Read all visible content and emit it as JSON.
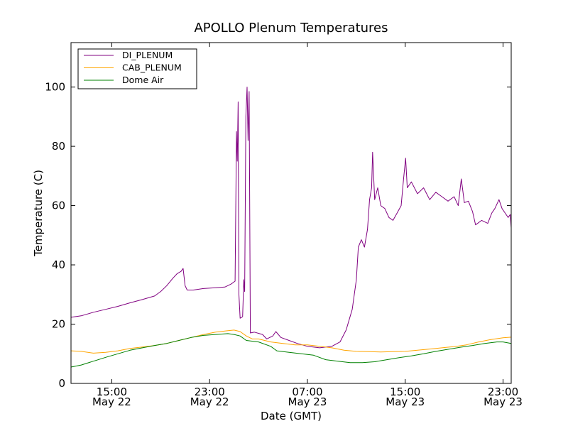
{
  "chart_data": {
    "type": "line",
    "title": "APOLLO Plenum Temperatures",
    "xlabel": "Date (GMT)",
    "ylabel": "Temperature (C)",
    "x_range": [
      "2013-05-22T11:40",
      "2013-05-23T23:40"
    ],
    "ylim": [
      0,
      115
    ],
    "grid": false,
    "legend_position": "top-left",
    "y_ticks": [
      0,
      20,
      40,
      60,
      80,
      100
    ],
    "x_ticks": [
      {
        "x": "2013-05-22T15:00",
        "label_time": "15:00",
        "label_date": "May 22"
      },
      {
        "x": "2013-05-22T23:00",
        "label_time": "23:00",
        "label_date": "May 22"
      },
      {
        "x": "2013-05-23T07:00",
        "label_time": "07:00",
        "label_date": "May 23"
      },
      {
        "x": "2013-05-23T15:00",
        "label_time": "15:00",
        "label_date": "May 23"
      },
      {
        "x": "2013-05-23T23:00",
        "label_time": "23:00",
        "label_date": "May 23"
      }
    ],
    "series": [
      {
        "name": "DI_PLENUM",
        "color": "#800080",
        "points": [
          [
            "2013-05-22T11:40",
            22.3
          ],
          [
            "2013-05-22T12:30",
            22.8
          ],
          [
            "2013-05-22T13:30",
            24.0
          ],
          [
            "2013-05-22T14:30",
            25.0
          ],
          [
            "2013-05-22T15:30",
            26.0
          ],
          [
            "2013-05-22T16:30",
            27.2
          ],
          [
            "2013-05-22T17:30",
            28.3
          ],
          [
            "2013-05-22T18:30",
            29.5
          ],
          [
            "2013-05-22T19:00",
            31.0
          ],
          [
            "2013-05-22T19:30",
            33.0
          ],
          [
            "2013-05-22T20:00",
            35.5
          ],
          [
            "2013-05-22T20:20",
            37.0
          ],
          [
            "2013-05-22T20:40",
            37.8
          ],
          [
            "2013-05-22T20:50",
            38.8
          ],
          [
            "2013-05-22T21:00",
            33.0
          ],
          [
            "2013-05-22T21:10",
            31.5
          ],
          [
            "2013-05-22T21:40",
            31.5
          ],
          [
            "2013-05-22T22:30",
            32.0
          ],
          [
            "2013-05-22T23:30",
            32.3
          ],
          [
            "2013-05-23T00:15",
            32.5
          ],
          [
            "2013-05-23T00:45",
            33.5
          ],
          [
            "2013-05-23T01:05",
            34.5
          ],
          [
            "2013-05-23T01:12",
            85.0
          ],
          [
            "2013-05-23T01:16",
            75.0
          ],
          [
            "2013-05-23T01:20",
            95.0
          ],
          [
            "2013-05-23T01:24",
            30.0
          ],
          [
            "2013-05-23T01:30",
            22.0
          ],
          [
            "2013-05-23T01:42",
            22.5
          ],
          [
            "2013-05-23T01:48",
            35.0
          ],
          [
            "2013-05-23T01:52",
            31.0
          ],
          [
            "2013-05-23T01:58",
            90.0
          ],
          [
            "2013-05-23T02:04",
            100.0
          ],
          [
            "2013-05-23T02:09",
            82.0
          ],
          [
            "2013-05-23T02:14",
            98.5
          ],
          [
            "2013-05-23T02:20",
            17.0
          ],
          [
            "2013-05-23T02:40",
            17.3
          ],
          [
            "2013-05-23T03:20",
            16.5
          ],
          [
            "2013-05-23T03:40",
            15.0
          ],
          [
            "2013-05-23T04:10",
            16.0
          ],
          [
            "2013-05-23T04:25",
            17.5
          ],
          [
            "2013-05-23T04:50",
            15.5
          ],
          [
            "2013-05-23T05:30",
            14.5
          ],
          [
            "2013-05-23T06:10",
            13.5
          ],
          [
            "2013-05-23T07:00",
            12.5
          ],
          [
            "2013-05-23T08:00",
            12.0
          ],
          [
            "2013-05-23T09:00",
            12.5
          ],
          [
            "2013-05-23T09:40",
            14.0
          ],
          [
            "2013-05-23T10:10",
            18.0
          ],
          [
            "2013-05-23T10:40",
            25.0
          ],
          [
            "2013-05-23T11:00",
            35.0
          ],
          [
            "2013-05-23T11:10",
            46.0
          ],
          [
            "2013-05-23T11:25",
            48.5
          ],
          [
            "2013-05-23T11:40",
            46.0
          ],
          [
            "2013-05-23T11:55",
            52.0
          ],
          [
            "2013-05-23T12:05",
            62.0
          ],
          [
            "2013-05-23T12:15",
            66.0
          ],
          [
            "2013-05-23T12:20",
            78.0
          ],
          [
            "2013-05-23T12:30",
            62.0
          ],
          [
            "2013-05-23T12:45",
            66.0
          ],
          [
            "2013-05-23T13:00",
            60.0
          ],
          [
            "2013-05-23T13:20",
            59.0
          ],
          [
            "2013-05-23T13:40",
            56.0
          ],
          [
            "2013-05-23T14:00",
            55.0
          ],
          [
            "2013-05-23T14:20",
            57.5
          ],
          [
            "2013-05-23T14:40",
            60.0
          ],
          [
            "2013-05-23T14:52",
            69.0
          ],
          [
            "2013-05-23T15:02",
            76.0
          ],
          [
            "2013-05-23T15:10",
            66.0
          ],
          [
            "2013-05-23T15:30",
            68.0
          ],
          [
            "2013-05-23T16:00",
            64.0
          ],
          [
            "2013-05-23T16:30",
            66.0
          ],
          [
            "2013-05-23T17:00",
            62.0
          ],
          [
            "2013-05-23T17:30",
            64.5
          ],
          [
            "2013-05-23T18:00",
            63.0
          ],
          [
            "2013-05-23T18:30",
            61.5
          ],
          [
            "2013-05-23T19:00",
            63.0
          ],
          [
            "2013-05-23T19:20",
            60.0
          ],
          [
            "2013-05-23T19:35",
            69.0
          ],
          [
            "2013-05-23T19:50",
            61.0
          ],
          [
            "2013-05-23T20:10",
            61.5
          ],
          [
            "2013-05-23T20:30",
            58.0
          ],
          [
            "2013-05-23T20:45",
            53.5
          ],
          [
            "2013-05-23T21:15",
            55.0
          ],
          [
            "2013-05-23T21:45",
            54.0
          ],
          [
            "2013-05-23T22:05",
            57.5
          ],
          [
            "2013-05-23T22:20",
            59.0
          ],
          [
            "2013-05-23T22:40",
            62.0
          ],
          [
            "2013-05-23T22:55",
            59.0
          ],
          [
            "2013-05-23T23:10",
            57.5
          ],
          [
            "2013-05-23T23:25",
            56.0
          ],
          [
            "2013-05-23T23:35",
            57.0
          ],
          [
            "2013-05-23T23:40",
            52.5
          ]
        ]
      },
      {
        "name": "CAB_PLENUM",
        "color": "#ffa500",
        "points": [
          [
            "2013-05-22T11:40",
            11.0
          ],
          [
            "2013-05-22T12:30",
            10.8
          ],
          [
            "2013-05-22T13:30",
            10.2
          ],
          [
            "2013-05-22T14:30",
            10.5
          ],
          [
            "2013-05-22T15:30",
            11.0
          ],
          [
            "2013-05-22T16:30",
            11.8
          ],
          [
            "2013-05-22T17:30",
            12.3
          ],
          [
            "2013-05-22T18:30",
            12.8
          ],
          [
            "2013-05-22T19:30",
            13.5
          ],
          [
            "2013-05-22T20:30",
            14.5
          ],
          [
            "2013-05-22T21:30",
            15.5
          ],
          [
            "2013-05-22T22:30",
            16.5
          ],
          [
            "2013-05-22T23:30",
            17.3
          ],
          [
            "2013-05-23T00:30",
            17.8
          ],
          [
            "2013-05-23T01:00",
            18.0
          ],
          [
            "2013-05-23T01:30",
            17.5
          ],
          [
            "2013-05-23T02:00",
            16.0
          ],
          [
            "2013-05-23T02:30",
            15.0
          ],
          [
            "2013-05-23T03:00",
            15.0
          ],
          [
            "2013-05-23T04:00",
            14.0
          ],
          [
            "2013-05-23T05:00",
            13.5
          ],
          [
            "2013-05-23T06:00",
            13.0
          ],
          [
            "2013-05-23T07:00",
            13.0
          ],
          [
            "2013-05-23T08:00",
            12.5
          ],
          [
            "2013-05-23T09:00",
            12.0
          ],
          [
            "2013-05-23T10:00",
            11.2
          ],
          [
            "2013-05-23T11:00",
            10.8
          ],
          [
            "2013-05-23T12:00",
            10.7
          ],
          [
            "2013-05-23T13:00",
            10.6
          ],
          [
            "2013-05-23T14:00",
            10.7
          ],
          [
            "2013-05-23T15:00",
            10.8
          ],
          [
            "2013-05-23T16:00",
            11.2
          ],
          [
            "2013-05-23T17:00",
            11.6
          ],
          [
            "2013-05-23T18:00",
            12.0
          ],
          [
            "2013-05-23T19:00",
            12.4
          ],
          [
            "2013-05-23T20:00",
            13.0
          ],
          [
            "2013-05-23T21:00",
            14.0
          ],
          [
            "2013-05-23T22:00",
            14.8
          ],
          [
            "2013-05-23T23:00",
            15.4
          ],
          [
            "2013-05-23T23:40",
            15.6
          ]
        ]
      },
      {
        "name": "Dome Air",
        "color": "#008000",
        "points": [
          [
            "2013-05-22T11:40",
            5.5
          ],
          [
            "2013-05-22T12:30",
            6.2
          ],
          [
            "2013-05-22T13:30",
            7.5
          ],
          [
            "2013-05-22T14:30",
            8.8
          ],
          [
            "2013-05-22T15:30",
            10.0
          ],
          [
            "2013-05-22T16:30",
            11.2
          ],
          [
            "2013-05-22T17:30",
            12.0
          ],
          [
            "2013-05-22T18:30",
            12.8
          ],
          [
            "2013-05-22T19:30",
            13.5
          ],
          [
            "2013-05-22T20:30",
            14.5
          ],
          [
            "2013-05-22T21:30",
            15.5
          ],
          [
            "2013-05-22T22:30",
            16.2
          ],
          [
            "2013-05-22T23:30",
            16.5
          ],
          [
            "2013-05-23T00:30",
            16.8
          ],
          [
            "2013-05-23T01:00",
            16.5
          ],
          [
            "2013-05-23T01:30",
            16.0
          ],
          [
            "2013-05-23T02:00",
            14.5
          ],
          [
            "2013-05-23T03:00",
            14.0
          ],
          [
            "2013-05-23T04:00",
            12.5
          ],
          [
            "2013-05-23T04:30",
            11.0
          ],
          [
            "2013-05-23T05:30",
            10.5
          ],
          [
            "2013-05-23T06:30",
            10.0
          ],
          [
            "2013-05-23T07:30",
            9.5
          ],
          [
            "2013-05-23T08:30",
            8.0
          ],
          [
            "2013-05-23T09:30",
            7.5
          ],
          [
            "2013-05-23T10:30",
            7.0
          ],
          [
            "2013-05-23T11:30",
            7.0
          ],
          [
            "2013-05-23T12:30",
            7.3
          ],
          [
            "2013-05-23T13:30",
            8.0
          ],
          [
            "2013-05-23T14:30",
            8.7
          ],
          [
            "2013-05-23T15:30",
            9.3
          ],
          [
            "2013-05-23T16:30",
            10.0
          ],
          [
            "2013-05-23T17:30",
            10.8
          ],
          [
            "2013-05-23T18:30",
            11.5
          ],
          [
            "2013-05-23T19:30",
            12.2
          ],
          [
            "2013-05-23T20:30",
            12.8
          ],
          [
            "2013-05-23T21:30",
            13.5
          ],
          [
            "2013-05-23T22:30",
            14.0
          ],
          [
            "2013-05-23T23:00",
            14.0
          ],
          [
            "2013-05-23T23:40",
            13.5
          ]
        ]
      }
    ]
  }
}
